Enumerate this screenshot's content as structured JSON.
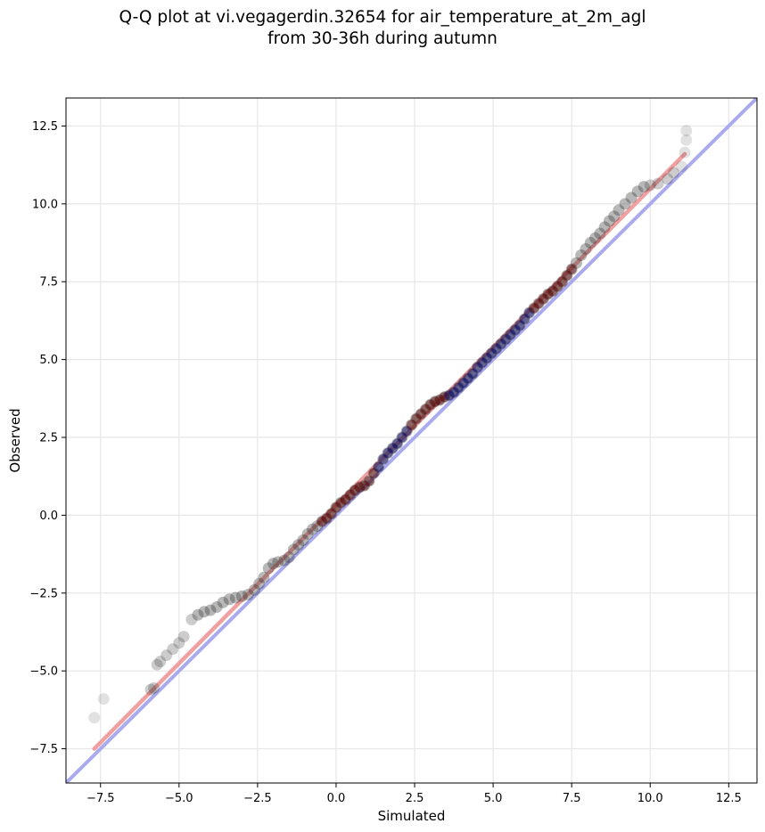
{
  "chart_data": {
    "type": "scatter",
    "title_line1": "Q-Q plot at vi.vegagerdin.32654 for air_temperature_at_2m_agl",
    "title_line2": "from 30-36h during autumn",
    "xlabel": "Simulated",
    "ylabel": "Observed",
    "xlim": [
      -8.6,
      13.4
    ],
    "ylim": [
      -8.6,
      13.4
    ],
    "xticks": [
      -7.5,
      -5.0,
      -2.5,
      0.0,
      2.5,
      5.0,
      7.5,
      10.0,
      12.5
    ],
    "yticks": [
      -7.5,
      -5.0,
      -2.5,
      0.0,
      2.5,
      5.0,
      7.5,
      10.0,
      12.5
    ],
    "xtick_labels": [
      "−7.5",
      "−5.0",
      "−2.5",
      "0.0",
      "2.5",
      "5.0",
      "7.5",
      "10.0",
      "12.5"
    ],
    "ytick_labels": [
      "−7.5",
      "−5.0",
      "−2.5",
      "0.0",
      "2.5",
      "5.0",
      "7.5",
      "10.0",
      "12.5"
    ],
    "grid": true,
    "reference_line": {
      "color": "#aaaaee",
      "from": [
        -8.6,
        -8.6
      ],
      "to": [
        13.4,
        13.4
      ]
    },
    "fit_line": {
      "color": "#f0a0a0",
      "from": [
        -7.7,
        -7.5
      ],
      "to": [
        11.1,
        11.6
      ]
    },
    "marker_color": "#333333",
    "density_colors": {
      "low": "#333333",
      "mid": "#5a0000",
      "high": "#000066"
    },
    "series": [
      {
        "points": [
          [
            -7.7,
            -6.5
          ],
          [
            -7.4,
            -5.9
          ],
          [
            -5.9,
            -5.6
          ],
          [
            -5.8,
            -5.55
          ],
          [
            -5.7,
            -4.8
          ],
          [
            -5.6,
            -4.7
          ],
          [
            -5.4,
            -4.5
          ],
          [
            -5.2,
            -4.3
          ],
          [
            -5.0,
            -4.1
          ],
          [
            -4.85,
            -3.9
          ],
          [
            -4.6,
            -3.35
          ],
          [
            -4.4,
            -3.2
          ],
          [
            -4.2,
            -3.1
          ],
          [
            -4.0,
            -3.05
          ],
          [
            -3.8,
            -2.95
          ],
          [
            -3.6,
            -2.8
          ],
          [
            -3.4,
            -2.7
          ],
          [
            -3.2,
            -2.65
          ],
          [
            -3.0,
            -2.6
          ],
          [
            -2.8,
            -2.55
          ],
          [
            -2.6,
            -2.4
          ],
          [
            -2.45,
            -2.2
          ],
          [
            -2.3,
            -2.0
          ],
          [
            -2.15,
            -1.7
          ],
          [
            -2.0,
            -1.55
          ],
          [
            -1.85,
            -1.5
          ],
          [
            -1.65,
            -1.45
          ],
          [
            -1.5,
            -1.35
          ],
          [
            -1.35,
            -1.1
          ],
          [
            -1.2,
            -0.95
          ],
          [
            -1.05,
            -0.8
          ],
          [
            -0.9,
            -0.6
          ],
          [
            -0.75,
            -0.45
          ],
          [
            -0.6,
            -0.35
          ],
          [
            -0.45,
            -0.2
          ],
          [
            -0.3,
            -0.1
          ],
          [
            -0.15,
            0.05
          ],
          [
            0.0,
            0.25
          ],
          [
            0.15,
            0.4
          ],
          [
            0.3,
            0.5
          ],
          [
            0.45,
            0.65
          ],
          [
            0.6,
            0.8
          ],
          [
            0.75,
            0.9
          ],
          [
            0.9,
            0.95
          ],
          [
            1.05,
            1.1
          ],
          [
            1.2,
            1.35
          ],
          [
            1.35,
            1.55
          ],
          [
            1.5,
            1.8
          ],
          [
            1.65,
            2.0
          ],
          [
            1.8,
            2.15
          ],
          [
            1.95,
            2.3
          ],
          [
            2.1,
            2.5
          ],
          [
            2.25,
            2.7
          ],
          [
            2.4,
            2.9
          ],
          [
            2.55,
            3.1
          ],
          [
            2.7,
            3.25
          ],
          [
            2.85,
            3.4
          ],
          [
            3.0,
            3.55
          ],
          [
            3.15,
            3.65
          ],
          [
            3.3,
            3.7
          ],
          [
            3.45,
            3.8
          ],
          [
            3.6,
            3.85
          ],
          [
            3.75,
            3.95
          ],
          [
            3.9,
            4.1
          ],
          [
            4.05,
            4.25
          ],
          [
            4.2,
            4.4
          ],
          [
            4.35,
            4.55
          ],
          [
            4.5,
            4.75
          ],
          [
            4.65,
            4.9
          ],
          [
            4.8,
            5.05
          ],
          [
            4.95,
            5.2
          ],
          [
            5.1,
            5.35
          ],
          [
            5.25,
            5.5
          ],
          [
            5.4,
            5.65
          ],
          [
            5.55,
            5.8
          ],
          [
            5.7,
            5.95
          ],
          [
            5.85,
            6.1
          ],
          [
            6.0,
            6.3
          ],
          [
            6.15,
            6.5
          ],
          [
            6.3,
            6.65
          ],
          [
            6.45,
            6.8
          ],
          [
            6.6,
            6.95
          ],
          [
            6.75,
            7.1
          ],
          [
            6.9,
            7.2
          ],
          [
            7.05,
            7.35
          ],
          [
            7.2,
            7.5
          ],
          [
            7.35,
            7.7
          ],
          [
            7.5,
            7.9
          ],
          [
            7.65,
            8.1
          ],
          [
            7.8,
            8.35
          ],
          [
            7.95,
            8.55
          ],
          [
            8.1,
            8.75
          ],
          [
            8.25,
            8.9
          ],
          [
            8.4,
            9.05
          ],
          [
            8.55,
            9.25
          ],
          [
            8.7,
            9.45
          ],
          [
            8.85,
            9.6
          ],
          [
            9.0,
            9.8
          ],
          [
            9.2,
            10.0
          ],
          [
            9.4,
            10.2
          ],
          [
            9.6,
            10.4
          ],
          [
            9.8,
            10.55
          ],
          [
            10.0,
            10.6
          ],
          [
            10.25,
            10.65
          ],
          [
            10.55,
            10.8
          ],
          [
            10.75,
            11.0
          ],
          [
            11.0,
            11.2
          ],
          [
            11.1,
            11.65
          ],
          [
            11.15,
            12.05
          ],
          [
            11.15,
            12.35
          ]
        ]
      }
    ]
  }
}
